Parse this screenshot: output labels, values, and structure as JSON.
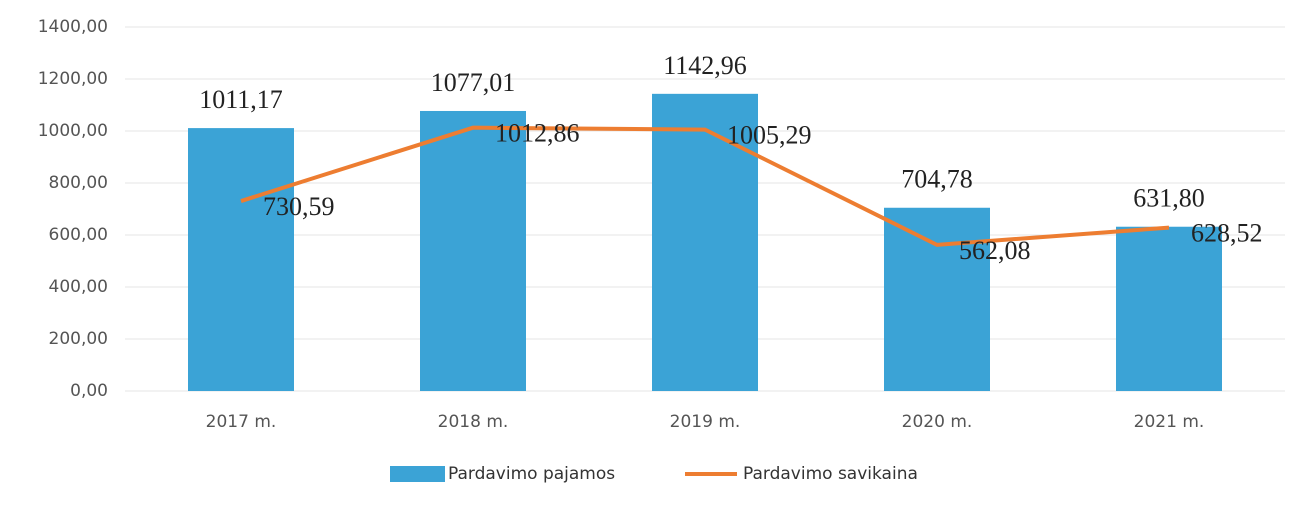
{
  "chart_data": {
    "type": "combo",
    "categories": [
      "2017 m.",
      "2018 m.",
      "2019 m.",
      "2020 m.",
      "2021 m."
    ],
    "series": [
      {
        "name": "Pardavimo pajamos",
        "type": "bar",
        "color": "#3ba3d6",
        "values": [
          1011.17,
          1077.01,
          1142.96,
          704.78,
          631.8
        ],
        "value_labels": [
          "1011,17",
          "1077,01",
          "1142,96",
          "704,78",
          "631,80"
        ]
      },
      {
        "name": "Pardavimo savikaina",
        "type": "line",
        "color": "#ed7d31",
        "values": [
          730.59,
          1012.86,
          1005.29,
          562.08,
          628.52
        ],
        "value_labels": [
          "730,59",
          "1012,86",
          "1005,29",
          "562,08",
          "628,52"
        ]
      }
    ],
    "ylim": [
      0,
      1400
    ],
    "yticks": [
      {
        "value": 0,
        "label": "0,00"
      },
      {
        "value": 200,
        "label": "200,00"
      },
      {
        "value": 400,
        "label": "400,00"
      },
      {
        "value": 600,
        "label": "600,00"
      },
      {
        "value": 800,
        "label": "800,00"
      },
      {
        "value": 1000,
        "label": "1000,00"
      },
      {
        "value": 1200,
        "label": "1200,00"
      },
      {
        "value": 1400,
        "label": "1400,00"
      }
    ],
    "grid": true,
    "legend": "bottom"
  }
}
